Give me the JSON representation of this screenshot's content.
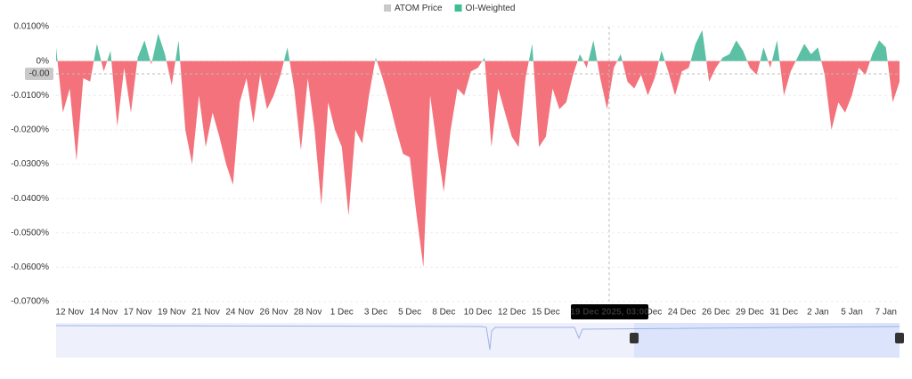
{
  "chart_data": {
    "type": "area",
    "legend_items": [
      {
        "name": "ATOM Price",
        "color": "#c9c9c9"
      },
      {
        "name": "OI-Weighted",
        "color": "#3dbf93"
      }
    ],
    "series": [
      {
        "name": "OI-Weighted",
        "color": "#5cc0a4",
        "negative_color": "#f3727b",
        "values": [
          0.004,
          -0.015,
          -0.008,
          -0.029,
          -0.005,
          -0.006,
          0.005,
          -0.003,
          0.003,
          -0.019,
          -0.002,
          -0.015,
          0.001,
          0.006,
          -0.001,
          0.008,
          0.002,
          -0.007,
          0.006,
          -0.02,
          -0.03,
          -0.01,
          -0.025,
          -0.015,
          -0.022,
          -0.03,
          -0.036,
          -0.012,
          -0.005,
          -0.018,
          -0.004,
          -0.014,
          -0.01,
          -0.004,
          0.004,
          -0.008,
          -0.026,
          -0.005,
          -0.02,
          -0.042,
          -0.012,
          -0.02,
          -0.025,
          -0.045,
          -0.02,
          -0.024,
          -0.01,
          0.001,
          -0.005,
          -0.012,
          -0.02,
          -0.027,
          -0.028,
          -0.045,
          -0.06,
          -0.01,
          -0.025,
          -0.038,
          -0.02,
          -0.008,
          -0.01,
          -0.003,
          -0.002,
          0.001,
          -0.025,
          -0.008,
          -0.015,
          -0.022,
          -0.025,
          -0.005,
          0.005,
          -0.025,
          -0.022,
          -0.008,
          -0.014,
          -0.012,
          -0.004,
          0.002,
          -0.002,
          0.006,
          -0.005,
          -0.014,
          -0.002,
          0.002,
          -0.006,
          -0.008,
          -0.004,
          -0.01,
          -0.005,
          0.003,
          -0.003,
          -0.01,
          -0.003,
          -0.002,
          0.005,
          0.009,
          -0.006,
          -0.002,
          0.001,
          0.002,
          0.006,
          0.003,
          -0.002,
          -0.004,
          0.004,
          -0.002,
          0.006,
          -0.01,
          -0.003,
          0.001,
          0.005,
          0.002,
          0.004,
          -0.004,
          -0.02,
          -0.012,
          -0.015,
          -0.01,
          -0.002,
          -0.004,
          0.002,
          0.006,
          0.004,
          -0.012,
          -0.006
        ]
      }
    ],
    "categories": [
      null,
      null,
      "12 Nov",
      null,
      null,
      null,
      null,
      "14 Nov",
      null,
      null,
      null,
      null,
      "17 Nov",
      null,
      null,
      null,
      null,
      "19 Nov",
      null,
      null,
      null,
      null,
      "21 Nov",
      null,
      null,
      null,
      null,
      "24 Nov",
      null,
      null,
      null,
      null,
      "26 Nov",
      null,
      null,
      null,
      null,
      "28 Nov",
      null,
      null,
      null,
      null,
      "1 Dec",
      null,
      null,
      null,
      null,
      "3 Dec",
      null,
      null,
      null,
      null,
      "5 Dec",
      null,
      null,
      null,
      null,
      "8 Dec",
      null,
      null,
      null,
      null,
      "10 Dec",
      null,
      null,
      null,
      null,
      "12 Dec",
      null,
      null,
      null,
      null,
      "15 Dec",
      null,
      null,
      null,
      null,
      null,
      null,
      null,
      null,
      null,
      null,
      null,
      null,
      null,
      null,
      "22 Dec",
      null,
      null,
      null,
      null,
      "24 Dec",
      null,
      null,
      null,
      null,
      "26 Dec",
      null,
      null,
      null,
      null,
      "29 Dec",
      null,
      null,
      null,
      null,
      "31 Dec",
      null,
      null,
      null,
      null,
      "2 Jan",
      null,
      null,
      null,
      null,
      "5 Jan",
      null,
      null,
      null,
      null,
      "7 Jan",
      null,
      null
    ],
    "ylim": [
      -0.07,
      0.01
    ],
    "yticks": [
      {
        "value": 0.01,
        "label": "0.0100%"
      },
      {
        "value": 0,
        "label": "0%"
      },
      {
        "value": -0.01,
        "label": "-0.0100%"
      },
      {
        "value": -0.02,
        "label": "-0.0200%"
      },
      {
        "value": -0.03,
        "label": "-0.0300%"
      },
      {
        "value": -0.04,
        "label": "-0.0400%"
      },
      {
        "value": -0.05,
        "label": "-0.0500%"
      },
      {
        "value": -0.06,
        "label": "-0.0600%"
      },
      {
        "value": -0.07,
        "label": "-0.0700%"
      }
    ],
    "grid": true,
    "crosshair": {
      "x_label": "19 Dec 2025, 03:00",
      "y_label": "-0.00"
    }
  }
}
